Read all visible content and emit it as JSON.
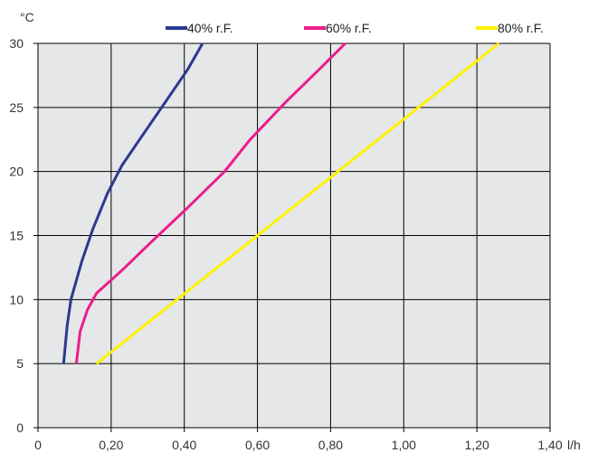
{
  "chart_data": {
    "type": "line",
    "title": "",
    "xlabel": "l/h",
    "ylabel": "°C",
    "xlim": [
      0,
      1.4
    ],
    "ylim": [
      0,
      30
    ],
    "x_ticks": [
      0,
      0.2,
      0.4,
      0.6,
      0.8,
      1.0,
      1.2,
      1.4
    ],
    "x_tick_labels": [
      "0",
      "0,20",
      "0,40",
      "0,60",
      "0,80",
      "1,00",
      "1,20",
      "1,40"
    ],
    "y_ticks": [
      0,
      5,
      10,
      15,
      20,
      25,
      30
    ],
    "y_tick_labels": [
      "0",
      "5",
      "10",
      "15",
      "20",
      "25",
      "30"
    ],
    "grid": true,
    "legend_position": "top",
    "background": "#e6e7e8",
    "series": [
      {
        "name": "40% r.F.",
        "color": "#2b3990",
        "points": [
          [
            0.07,
            5
          ],
          [
            0.08,
            8
          ],
          [
            0.09,
            10
          ],
          [
            0.12,
            13
          ],
          [
            0.15,
            15.5
          ],
          [
            0.19,
            18.3
          ],
          [
            0.23,
            20.5
          ],
          [
            0.29,
            23
          ],
          [
            0.35,
            25.5
          ],
          [
            0.41,
            28
          ],
          [
            0.45,
            30
          ]
        ]
      },
      {
        "name": "60% r.F.",
        "color": "#ec1c8c",
        "points": [
          [
            0.105,
            5
          ],
          [
            0.115,
            7.5
          ],
          [
            0.135,
            9.2
          ],
          [
            0.16,
            10.5
          ],
          [
            0.23,
            12.3
          ],
          [
            0.31,
            14.5
          ],
          [
            0.41,
            17.2
          ],
          [
            0.51,
            20
          ],
          [
            0.58,
            22.5
          ],
          [
            0.68,
            25.5
          ],
          [
            0.77,
            28
          ],
          [
            0.84,
            30
          ]
        ]
      },
      {
        "name": "80% r.F.",
        "color": "#fff200",
        "points": [
          [
            0.16,
            5
          ],
          [
            1.26,
            30
          ]
        ]
      }
    ]
  }
}
